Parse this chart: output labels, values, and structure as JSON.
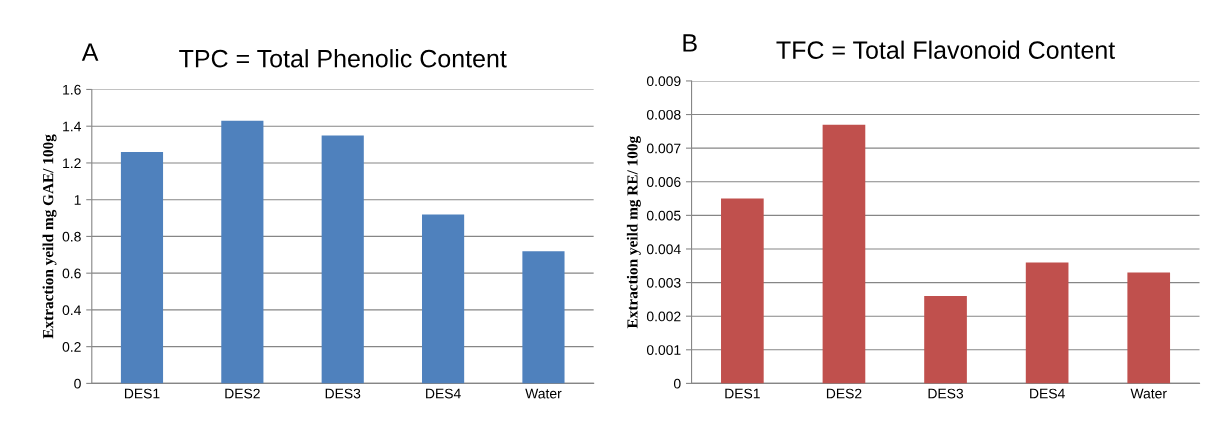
{
  "chart_data": [
    {
      "type": "bar",
      "title": "TPC = Total Phenolic Content",
      "annotations": [
        "A"
      ],
      "ylabel": "Extraction yeild mg GAE/ 100g",
      "categories": [
        "DES1",
        "DES2",
        "DES3",
        "DES4",
        "Water"
      ],
      "series": [
        {
          "color": "#4f81bd",
          "values": [
            1.26,
            1.43,
            1.35,
            0.92,
            0.72
          ]
        }
      ],
      "ylim": [
        0,
        1.6
      ],
      "yticks": [
        0,
        0.2,
        0.4,
        0.6,
        0.8,
        1,
        1.2,
        1.4,
        1.6
      ],
      "grid": "y",
      "legend": false
    },
    {
      "type": "bar",
      "title": "TFC = Total Flavonoid Content",
      "annotations": [
        "B"
      ],
      "ylabel": "Extraction yeild mg RE/ 100g",
      "categories": [
        "DES1",
        "DES2",
        "DES3",
        "DES4",
        "Water"
      ],
      "series": [
        {
          "color": "#c0504d",
          "values": [
            0.0055,
            0.0077,
            0.0026,
            0.0036,
            0.0033
          ]
        }
      ],
      "ylim": [
        0,
        0.009
      ],
      "yticks": [
        0,
        0.001,
        0.002,
        0.003,
        0.004,
        0.005,
        0.006,
        0.007,
        0.008,
        0.009
      ],
      "grid": "y",
      "legend": false
    }
  ]
}
